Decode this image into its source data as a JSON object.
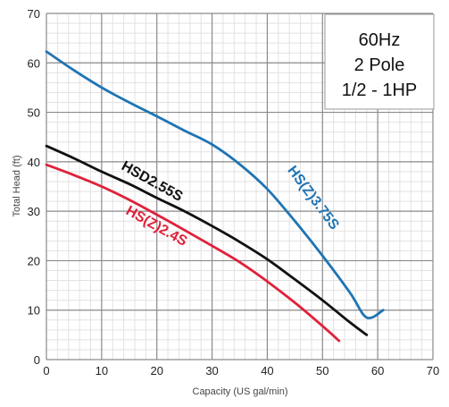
{
  "chart_data": {
    "type": "line",
    "xlabel": "Capacity (US gal/min)",
    "ylabel": "Total Head (ft)",
    "xlim": [
      0,
      70
    ],
    "ylim": [
      0,
      70
    ],
    "x_ticks": [
      "0",
      "10",
      "20",
      "30",
      "40",
      "50",
      "60",
      "70"
    ],
    "y_ticks": [
      "0",
      "10",
      "20",
      "30",
      "40",
      "50",
      "60",
      "70"
    ],
    "grid": true,
    "annotation_lines": [
      "60Hz",
      "2 Pole",
      "1/2 - 1HP"
    ],
    "series": [
      {
        "name": "HS(Z)3.75S",
        "color": "#1f74b4",
        "points": [
          [
            0,
            62.3
          ],
          [
            5,
            58.5
          ],
          [
            10,
            55.0
          ],
          [
            15,
            52.0
          ],
          [
            20,
            49.2
          ],
          [
            25,
            46.3
          ],
          [
            30,
            43.5
          ],
          [
            35,
            39.5
          ],
          [
            40,
            34.5
          ],
          [
            45,
            28.0
          ],
          [
            50,
            21.0
          ],
          [
            55,
            13.5
          ],
          [
            58,
            8.5
          ],
          [
            61,
            10.0
          ]
        ]
      },
      {
        "name": "HSD2.55S",
        "color": "#111111",
        "points": [
          [
            0,
            43.2
          ],
          [
            5,
            40.7
          ],
          [
            10,
            38.0
          ],
          [
            15,
            35.5
          ],
          [
            20,
            32.7
          ],
          [
            25,
            30.0
          ],
          [
            30,
            27.0
          ],
          [
            35,
            23.8
          ],
          [
            40,
            20.3
          ],
          [
            45,
            16.2
          ],
          [
            50,
            12.0
          ],
          [
            55,
            7.5
          ],
          [
            58,
            5.0
          ]
        ]
      },
      {
        "name": "HS(Z)2.4S",
        "color": "#e0213a",
        "points": [
          [
            0,
            39.4
          ],
          [
            5,
            37.3
          ],
          [
            10,
            35.0
          ],
          [
            15,
            32.3
          ],
          [
            20,
            29.3
          ],
          [
            25,
            26.2
          ],
          [
            30,
            23.0
          ],
          [
            35,
            19.7
          ],
          [
            40,
            15.8
          ],
          [
            45,
            11.5
          ],
          [
            50,
            6.8
          ],
          [
            53,
            3.8
          ]
        ]
      }
    ]
  }
}
